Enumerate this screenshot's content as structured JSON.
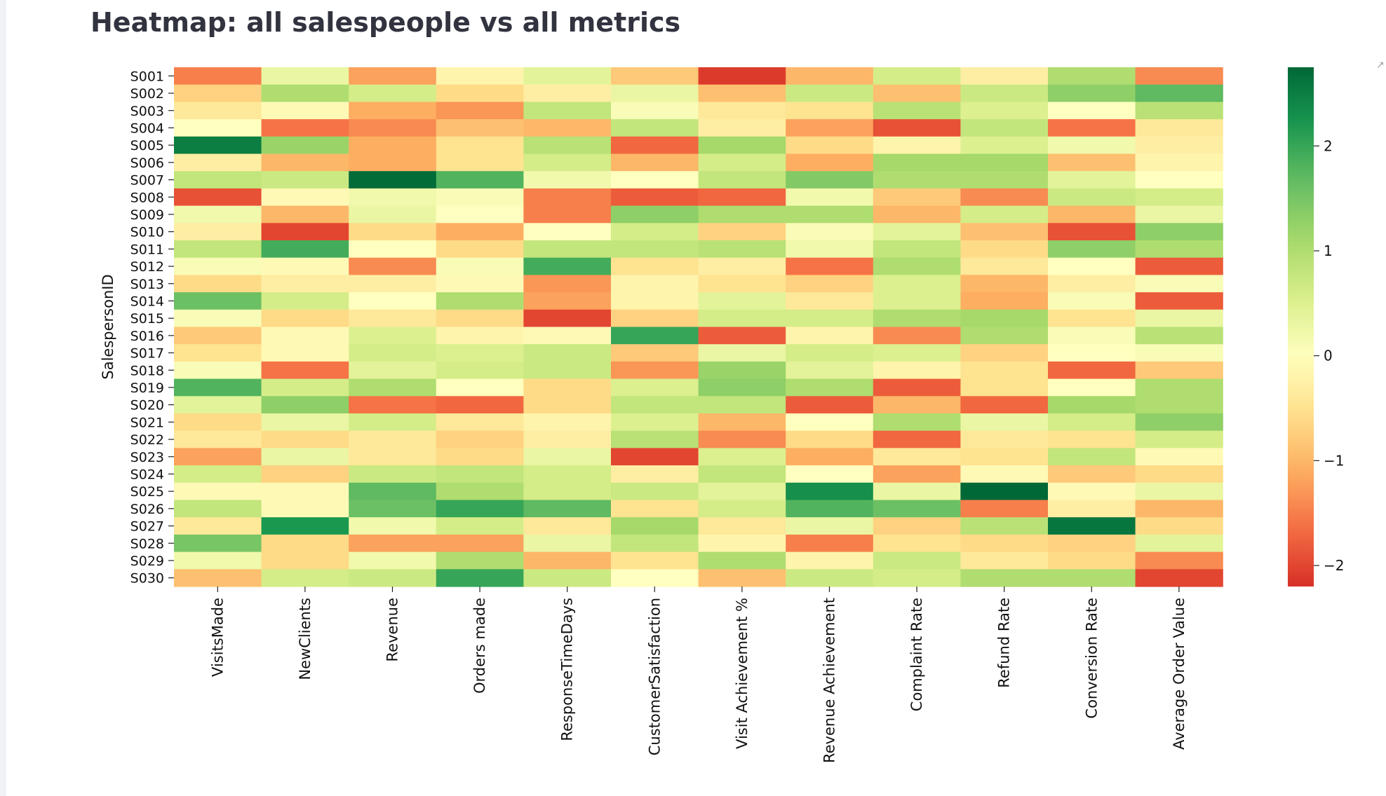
{
  "page": {
    "title": "Heatmap: all salespeople vs all metrics"
  },
  "icons": {
    "corner": "pin-icon"
  },
  "chart_data": {
    "type": "heatmap",
    "title": "",
    "ylabel": "SalespersonID",
    "xlabel": "",
    "colormap": "RdYlGn",
    "colorbar": {
      "min": -2.2,
      "max": 2.75,
      "ticks": [
        -2,
        -1,
        0,
        1,
        2
      ],
      "tick_labels": [
        "−2",
        "−1",
        "0",
        "1",
        "2"
      ]
    },
    "columns": [
      "VisitsMade",
      "NewClients",
      "Revenue",
      "Orders made",
      "ResponseTimeDays",
      "CustomerSatisfaction",
      "Visit Achievement %",
      "Revenue Achievement",
      "Complaint Rate",
      "Refund Rate",
      "Conversion Rate",
      "Average Order Value"
    ],
    "rows": [
      "S001",
      "S002",
      "S003",
      "S004",
      "S005",
      "S006",
      "S007",
      "S008",
      "S009",
      "S010",
      "S011",
      "S012",
      "S013",
      "S014",
      "S015",
      "S016",
      "S017",
      "S018",
      "S019",
      "S020",
      "S021",
      "S022",
      "S023",
      "S024",
      "S025",
      "S026",
      "S027",
      "S028",
      "S029",
      "S030"
    ],
    "values": [
      [
        -1.5,
        0.3,
        -1.2,
        -0.2,
        0.4,
        -0.8,
        -2.1,
        -1.0,
        0.6,
        -0.3,
        1.0,
        -1.4
      ],
      [
        -0.7,
        1.0,
        0.6,
        -0.6,
        -0.3,
        0.3,
        -0.9,
        0.7,
        -0.9,
        0.7,
        1.3,
        1.7
      ],
      [
        -0.4,
        -0.1,
        -1.1,
        -1.3,
        0.8,
        0.1,
        -0.4,
        -0.5,
        0.9,
        0.5,
        0.0,
        0.9
      ],
      [
        0.0,
        -1.6,
        -1.4,
        -0.9,
        -1.0,
        0.8,
        -0.3,
        -1.2,
        -1.9,
        0.8,
        -1.6,
        -0.4
      ],
      [
        2.5,
        1.2,
        -1.1,
        -0.5,
        0.9,
        -1.7,
        1.1,
        -0.6,
        -0.2,
        0.5,
        0.2,
        -0.3
      ],
      [
        -0.3,
        -1.0,
        -1.1,
        -0.5,
        0.6,
        -1.0,
        0.6,
        -1.1,
        1.1,
        1.1,
        -0.9,
        -0.2
      ],
      [
        0.8,
        0.7,
        2.7,
        1.8,
        0.2,
        0.0,
        0.8,
        1.4,
        1.0,
        1.0,
        0.4,
        0.0
      ],
      [
        -1.9,
        -0.1,
        0.2,
        0.1,
        -1.5,
        -1.8,
        -1.7,
        0.2,
        -0.8,
        -1.4,
        0.7,
        0.6
      ],
      [
        0.2,
        -1.0,
        0.3,
        0.0,
        -1.5,
        1.3,
        1.0,
        1.0,
        -1.0,
        0.6,
        -1.0,
        0.3
      ],
      [
        -0.3,
        -2.0,
        -0.6,
        -1.1,
        0.0,
        0.6,
        -0.7,
        0.1,
        0.4,
        -0.9,
        -1.9,
        1.3
      ],
      [
        0.8,
        1.9,
        0.0,
        -0.6,
        0.8,
        0.8,
        0.9,
        0.2,
        0.8,
        -0.6,
        1.3,
        1.0
      ],
      [
        0.1,
        -0.1,
        -1.4,
        0.1,
        1.9,
        -0.5,
        -0.3,
        -1.6,
        1.0,
        -0.4,
        0.0,
        -1.8
      ],
      [
        -0.6,
        -0.3,
        -0.3,
        -0.1,
        -1.3,
        -0.2,
        -0.5,
        -0.7,
        0.5,
        -1.0,
        -0.3,
        0.1
      ],
      [
        1.6,
        0.6,
        0.0,
        1.0,
        -1.2,
        -0.2,
        0.4,
        -0.4,
        0.5,
        -1.1,
        0.1,
        -1.8
      ],
      [
        0.1,
        -0.6,
        -0.4,
        -0.6,
        -2.0,
        -0.7,
        0.6,
        0.6,
        1.0,
        1.1,
        -0.5,
        0.3
      ],
      [
        -0.8,
        -0.1,
        0.5,
        -0.2,
        -0.1,
        2.0,
        -1.8,
        -0.2,
        -1.4,
        1.0,
        0.1,
        0.9
      ],
      [
        -0.5,
        -0.1,
        0.6,
        0.5,
        0.7,
        -0.8,
        0.3,
        0.6,
        0.5,
        -0.7,
        0.0,
        0.1
      ],
      [
        0.1,
        -1.6,
        0.4,
        0.6,
        0.7,
        -1.3,
        1.2,
        0.4,
        -0.2,
        -0.5,
        -1.7,
        -0.8
      ],
      [
        1.8,
        0.6,
        1.0,
        0.0,
        -0.6,
        0.5,
        1.3,
        1.0,
        -1.8,
        -0.5,
        0.0,
        1.0
      ],
      [
        0.4,
        1.3,
        -1.6,
        -1.7,
        -0.6,
        0.8,
        0.8,
        -1.8,
        -1.0,
        -1.7,
        1.1,
        1.0
      ],
      [
        -0.6,
        0.3,
        0.6,
        -0.4,
        -0.2,
        0.5,
        -1.0,
        0.0,
        1.0,
        0.3,
        0.6,
        1.3
      ],
      [
        -0.4,
        -0.6,
        -0.4,
        -0.7,
        -0.3,
        0.9,
        -1.4,
        -0.6,
        -1.7,
        -0.4,
        -0.5,
        0.6
      ],
      [
        -1.2,
        0.3,
        -0.4,
        -0.6,
        0.3,
        -2.0,
        0.5,
        -1.1,
        -0.4,
        -0.5,
        0.8,
        -0.1
      ],
      [
        0.6,
        -0.7,
        0.7,
        0.8,
        0.6,
        -0.3,
        0.8,
        0.0,
        -1.2,
        -0.1,
        -0.8,
        -0.6
      ],
      [
        -0.1,
        -0.1,
        1.7,
        1.0,
        0.6,
        0.7,
        0.4,
        2.3,
        0.3,
        2.75,
        -0.1,
        0.3
      ],
      [
        0.8,
        -0.1,
        1.6,
        2.0,
        1.7,
        -0.5,
        0.6,
        1.8,
        1.6,
        -1.5,
        -0.3,
        -1.0
      ],
      [
        -0.4,
        2.2,
        0.2,
        0.6,
        -0.4,
        1.1,
        -0.4,
        0.3,
        -0.7,
        0.9,
        2.6,
        -0.6
      ],
      [
        1.5,
        -0.6,
        -1.2,
        -1.2,
        0.3,
        0.8,
        -0.2,
        -1.5,
        -0.5,
        -0.6,
        -0.7,
        0.4
      ],
      [
        0.2,
        -0.6,
        0.2,
        1.0,
        -1.0,
        -0.5,
        1.0,
        -0.2,
        0.7,
        -0.4,
        -0.6,
        -1.4
      ],
      [
        -0.9,
        0.6,
        0.7,
        2.0,
        0.7,
        0.0,
        -0.9,
        0.7,
        0.6,
        1.0,
        1.0,
        -2.0
      ]
    ]
  }
}
